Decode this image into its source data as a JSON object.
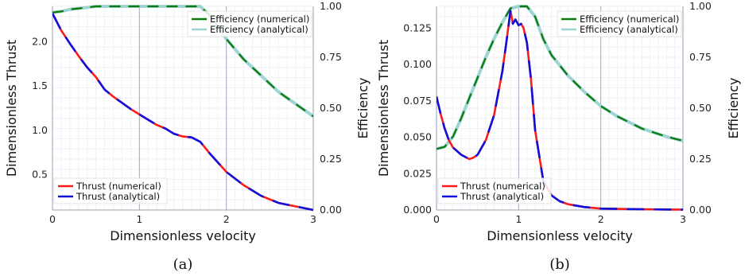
{
  "chart_data": [
    {
      "type": "line",
      "caption": "(a)",
      "xlabel": "Dimensionless velocity",
      "ylabel_left": "Dimensionless Thrust",
      "ylabel_right": "Efficiency",
      "xlim": [
        0,
        3
      ],
      "ylim_left": [
        0.1,
        2.4
      ],
      "ylim_right": [
        0,
        1
      ],
      "xticks": [
        "0",
        "1",
        "2",
        "3"
      ],
      "yticks_left": [
        "0.5",
        "1.0",
        "1.5",
        "2.0"
      ],
      "yticks_right": [
        "0.00",
        "0.25",
        "0.50",
        "0.75",
        "1.00"
      ],
      "grid": true,
      "thrust_legend_position": "lower-left",
      "efficiency_legend_position": "upper-right",
      "thrust_x": [
        0,
        0.1,
        0.2,
        0.3,
        0.4,
        0.5,
        0.6,
        0.7,
        0.8,
        0.9,
        1.0,
        1.1,
        1.2,
        1.3,
        1.4,
        1.5,
        1.6,
        1.7,
        1.8,
        1.9,
        2.0,
        2.2,
        2.4,
        2.6,
        2.8,
        3.0
      ],
      "efficiency_x": [
        0,
        0.1,
        0.2,
        0.3,
        0.4,
        0.5,
        0.6,
        0.7,
        0.8,
        0.9,
        1.0,
        1.1,
        1.2,
        1.3,
        1.4,
        1.5,
        1.6,
        1.7,
        1.8,
        1.9,
        2.0,
        2.2,
        2.4,
        2.6,
        2.8,
        3.0
      ],
      "series": [
        {
          "name": "Thrust (numerical)",
          "axis": "left",
          "color": "#ff1a1a",
          "values": [
            2.32,
            2.13,
            1.98,
            1.84,
            1.71,
            1.6,
            1.46,
            1.38,
            1.31,
            1.24,
            1.18,
            1.12,
            1.06,
            1.02,
            0.96,
            0.93,
            0.92,
            0.87,
            0.75,
            0.64,
            0.53,
            0.38,
            0.26,
            0.18,
            0.14,
            0.1
          ]
        },
        {
          "name": "Thrust (analytical)",
          "axis": "left",
          "color": "#1010dd",
          "values": [
            2.32,
            2.13,
            1.98,
            1.84,
            1.71,
            1.6,
            1.46,
            1.38,
            1.31,
            1.24,
            1.18,
            1.12,
            1.06,
            1.02,
            0.96,
            0.93,
            0.92,
            0.87,
            0.75,
            0.64,
            0.53,
            0.38,
            0.26,
            0.18,
            0.14,
            0.1
          ]
        },
        {
          "name": "Efficiency (numerical)",
          "axis": "right",
          "color": "#0a7a0a",
          "values": [
            0.97,
            0.975,
            0.985,
            0.99,
            0.995,
            1.0,
            1.0,
            1.0,
            1.0,
            1.0,
            1.0,
            1.0,
            1.0,
            1.0,
            1.0,
            1.0,
            1.0,
            1.0,
            0.96,
            0.9,
            0.84,
            0.74,
            0.66,
            0.58,
            0.52,
            0.46
          ]
        },
        {
          "name": "Efficiency (analytical)",
          "axis": "right",
          "color": "#9fd4d4",
          "values": [
            0.97,
            0.975,
            0.985,
            0.99,
            0.995,
            1.0,
            1.0,
            1.0,
            1.0,
            1.0,
            1.0,
            1.0,
            1.0,
            1.0,
            1.0,
            1.0,
            1.0,
            1.0,
            0.96,
            0.9,
            0.84,
            0.74,
            0.66,
            0.58,
            0.52,
            0.46
          ]
        }
      ]
    },
    {
      "type": "line",
      "caption": "(b)",
      "xlabel": "Dimensionless velocity",
      "ylabel_left": "Dimensionless Thrust",
      "ylabel_right": "Efficiency",
      "xlim": [
        0,
        3
      ],
      "ylim_left": [
        0,
        0.14
      ],
      "ylim_right": [
        0,
        1
      ],
      "xticks": [
        "0",
        "1",
        "2",
        "3"
      ],
      "yticks_left": [
        "0.000",
        "0.025",
        "0.050",
        "0.075",
        "0.100",
        "0.125"
      ],
      "yticks_right": [
        "0.00",
        "0.25",
        "0.50",
        "0.75",
        "1.00"
      ],
      "grid": true,
      "thrust_legend_position": "lower-left",
      "efficiency_legend_position": "upper-right",
      "thrust_x": [
        0,
        0.05,
        0.1,
        0.15,
        0.2,
        0.3,
        0.4,
        0.45,
        0.5,
        0.6,
        0.7,
        0.8,
        0.85,
        0.9,
        0.93,
        0.96,
        1.0,
        1.03,
        1.06,
        1.1,
        1.15,
        1.2,
        1.3,
        1.4,
        1.5,
        1.6,
        1.8,
        2.0,
        2.5,
        3.0
      ],
      "efficiency_x": [
        0,
        0.1,
        0.2,
        0.3,
        0.4,
        0.5,
        0.6,
        0.7,
        0.8,
        0.9,
        1.0,
        1.1,
        1.2,
        1.3,
        1.4,
        1.6,
        1.8,
        2.0,
        2.2,
        2.5,
        2.8,
        3.0
      ],
      "series": [
        {
          "name": "Thrust (numerical)",
          "axis": "left",
          "color": "#ff1a1a",
          "values": [
            0.078,
            0.066,
            0.056,
            0.048,
            0.043,
            0.038,
            0.035,
            0.036,
            0.038,
            0.048,
            0.065,
            0.095,
            0.115,
            0.137,
            0.128,
            0.131,
            0.127,
            0.128,
            0.125,
            0.115,
            0.09,
            0.055,
            0.02,
            0.01,
            0.006,
            0.004,
            0.002,
            0.001,
            0.0005,
            0.0002
          ]
        },
        {
          "name": "Thrust (analytical)",
          "axis": "left",
          "color": "#1010dd",
          "values": [
            0.078,
            0.066,
            0.056,
            0.048,
            0.043,
            0.038,
            0.035,
            0.036,
            0.038,
            0.048,
            0.065,
            0.095,
            0.115,
            0.137,
            0.128,
            0.131,
            0.127,
            0.128,
            0.125,
            0.115,
            0.09,
            0.055,
            0.02,
            0.01,
            0.006,
            0.004,
            0.002,
            0.001,
            0.0005,
            0.0002
          ]
        },
        {
          "name": "Efficiency (numerical)",
          "axis": "right",
          "color": "#0a7a0a",
          "values": [
            0.3,
            0.31,
            0.36,
            0.45,
            0.55,
            0.65,
            0.75,
            0.84,
            0.92,
            0.99,
            1.0,
            1.0,
            0.95,
            0.84,
            0.76,
            0.66,
            0.58,
            0.51,
            0.46,
            0.4,
            0.36,
            0.34
          ]
        },
        {
          "name": "Efficiency (analytical)",
          "axis": "right",
          "color": "#9fd4d4",
          "values": [
            0.3,
            0.31,
            0.36,
            0.45,
            0.55,
            0.65,
            0.75,
            0.84,
            0.92,
            0.99,
            1.0,
            1.0,
            0.95,
            0.84,
            0.76,
            0.66,
            0.58,
            0.51,
            0.46,
            0.4,
            0.36,
            0.34
          ]
        }
      ]
    }
  ]
}
